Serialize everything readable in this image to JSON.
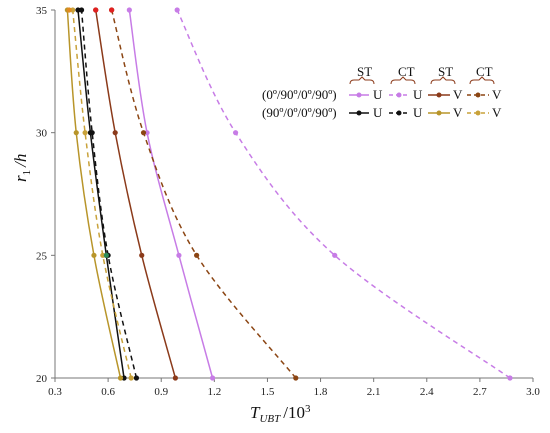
{
  "chart_data": {
    "type": "line",
    "title": "",
    "xlabel": {
      "main": "T",
      "sub": "UBT",
      "rest": "/10",
      "sup": "3"
    },
    "ylabel": {
      "main": "r",
      "sub": "1",
      "rest": "/h"
    },
    "xlim": [
      0.3,
      3.0
    ],
    "ylim": [
      20,
      35
    ],
    "xticks": [
      "0.3",
      "0.6",
      "0.9",
      "1.2",
      "1.5",
      "1.8",
      "2.1",
      "2.4",
      "2.7",
      "3.0"
    ],
    "xtick_values": [
      0.3,
      0.6,
      0.9,
      1.2,
      1.5,
      1.8,
      2.1,
      2.4,
      2.7,
      3.0
    ],
    "yticks": [
      "20",
      "25",
      "30",
      "35"
    ],
    "ytick_values": [
      20,
      25,
      30,
      35
    ],
    "grid": false,
    "legend": {
      "placement": "top-right",
      "groups": [
        "ST",
        "CT",
        "ST",
        "CT"
      ],
      "rows": [
        {
          "label": "(0º/90º/0º/90º)",
          "entries": [
            "U",
            "U",
            "V",
            "V"
          ]
        },
        {
          "label": "(90º/0º/0º/90º)",
          "entries": [
            "U",
            "U",
            "V",
            "V"
          ]
        }
      ]
    },
    "series": [
      {
        "color": "#c77ce6",
        "dash": "solid",
        "marker": "#c77ce6",
        "x": [
          1.19,
          1.0,
          0.82,
          0.72
        ],
        "y": [
          20,
          25,
          30,
          35
        ]
      },
      {
        "color": "#c77ce6",
        "dash": "dashed",
        "marker": "#c77ce6",
        "x": [
          2.87,
          1.88,
          1.32,
          0.99
        ],
        "y": [
          20,
          25,
          30,
          35
        ]
      },
      {
        "color": "#8b3a1a",
        "dash": "solid",
        "marker": "#8b3a1a",
        "x": [
          0.98,
          0.79,
          0.64,
          0.53
        ],
        "y": [
          20,
          25,
          30,
          35
        ]
      },
      {
        "color": "#8b4513",
        "dash": "dashed",
        "marker": "#8b4513",
        "x": [
          1.66,
          1.1,
          0.8,
          0.62
        ],
        "y": [
          20,
          25,
          30,
          35
        ]
      },
      {
        "color": "#111111",
        "dash": "solid",
        "marker": "#111111",
        "x": [
          0.69,
          0.59,
          0.5,
          0.43
        ],
        "y": [
          20,
          25,
          30,
          35
        ]
      },
      {
        "color": "#111111",
        "dash": "dashed",
        "marker": "#111111",
        "x": [
          0.76,
          0.6,
          0.51,
          0.45
        ],
        "y": [
          20,
          25,
          30,
          35
        ]
      },
      {
        "color": "#b8952a",
        "dash": "solid",
        "marker": "#b8952a",
        "x": [
          0.67,
          0.52,
          0.42,
          0.37
        ],
        "y": [
          20,
          25,
          30,
          35
        ]
      },
      {
        "color": "#c9a23a",
        "dash": "dashed",
        "marker": "#c9a23a",
        "x": [
          0.73,
          0.57,
          0.47,
          0.4
        ],
        "y": [
          20,
          25,
          30,
          35
        ]
      }
    ],
    "extra_points": [
      {
        "x": 0.53,
        "y": 35,
        "color": "#e02020"
      },
      {
        "x": 0.62,
        "y": 35,
        "color": "#e02020"
      },
      {
        "x": 0.38,
        "y": 35,
        "color": "#e08a20"
      },
      {
        "x": 0.59,
        "y": 25,
        "color": "#2e8b57"
      }
    ]
  }
}
